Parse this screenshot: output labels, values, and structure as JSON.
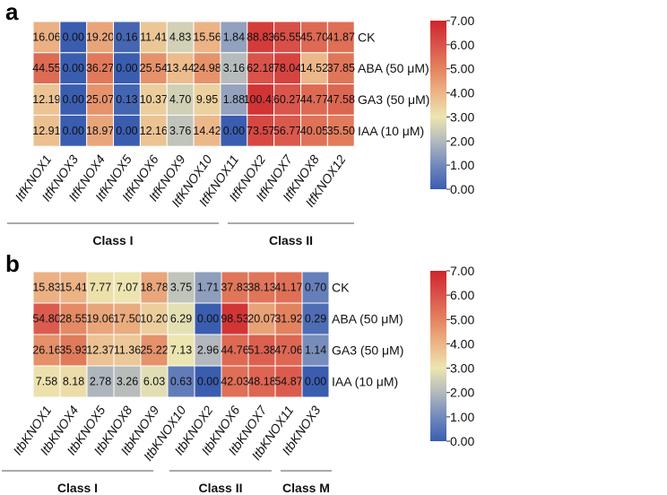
{
  "colors": {
    "stops": [
      "#3a5db0",
      "#7189bc",
      "#b3b9bd",
      "#ece6b1",
      "#ecb587",
      "#e3845f",
      "#d9524a",
      "#cf252a"
    ]
  },
  "chart_data": [
    {
      "type": "heatmap",
      "panel": "a",
      "color_transform": "log2(value+1)",
      "colorbar": {
        "range": [
          0,
          7
        ],
        "ticks": [
          "0.00",
          "1.00",
          "2.00",
          "3.00",
          "4.00",
          "5.00",
          "6.00",
          "7.00"
        ]
      },
      "rows": [
        "CK",
        "ABA (50 μM)",
        "GA3 (50 μM)",
        "IAA (10 μM)"
      ],
      "columns": [
        "ItfKNOX1",
        "ItfKNOX3",
        "ItfKNOX4",
        "ItfKNOX5",
        "ItfKNOX6",
        "ItfKNOX9",
        "ItfKNOX10",
        "ItfKNOX11",
        "ItfKNOX2",
        "ItfKNOX7",
        "ItfKNOX8",
        "ItfKNOX12"
      ],
      "values": [
        [
          "16.06",
          "0.00",
          "19.20",
          "0.16",
          "11.41",
          "4.83",
          "15.56",
          "1.84",
          "88.83",
          "65.55",
          "45.70",
          "41.87"
        ],
        [
          "44.55",
          "0.00",
          "36.27",
          "0.00",
          "25.54",
          "13.44",
          "24.98",
          "3.16",
          "62.18",
          "78.04",
          "14.52",
          "37.85"
        ],
        [
          "12.19",
          "0.00",
          "25.07",
          "0.13",
          "10.37",
          "4.70",
          "9.95",
          "1.88",
          "100.41",
          "60.27",
          "44.77",
          "47.58"
        ],
        [
          "12.91",
          "0.00",
          "18.97",
          "0.00",
          "12.16",
          "3.76",
          "14.42",
          "0.00",
          "73.57",
          "56.77",
          "40.05",
          "35.50"
        ]
      ],
      "groups": [
        {
          "label": "Class I",
          "from": 0,
          "to": 7
        },
        {
          "label": "Class II",
          "from": 8,
          "to": 11
        }
      ]
    },
    {
      "type": "heatmap",
      "panel": "b",
      "color_transform": "log2(value+1)",
      "colorbar": {
        "range": [
          0,
          7
        ],
        "ticks": [
          "0.00",
          "1.00",
          "2.00",
          "3.00",
          "4.00",
          "5.00",
          "6.00",
          "7.00"
        ]
      },
      "rows": [
        "CK",
        "ABA (50 μM)",
        "GA3 (50 μM)",
        "IAA (10 μM)"
      ],
      "columns": [
        "ItbKNOX1",
        "ItbKNOX4",
        "ItbKNOX5",
        "ItbKNOX8",
        "ItbKNOX9",
        "ItbKNOX10",
        "ItbKNOX2",
        "ItbKNOX6",
        "ItbKNOX7",
        "ItbKNOX11",
        "ItbKNOX3"
      ],
      "values": [
        [
          "15.83",
          "15.41",
          "7.77",
          "7.07",
          "18.78",
          "3.75",
          "1.71",
          "37.83",
          "38.13",
          "41.17",
          "0.70"
        ],
        [
          "54.80",
          "28.55",
          "19.06",
          "17.50",
          "10.20",
          "6.29",
          "0.00",
          "98.53",
          "20.07",
          "31.92",
          "0.29"
        ],
        [
          "26.16",
          "35.93",
          "12.37",
          "11.36",
          "25.22",
          "7.13",
          "2.96",
          "44.76",
          "51.38",
          "47.06",
          "1.14"
        ],
        [
          "7.58",
          "8.18",
          "2.78",
          "3.26",
          "6.03",
          "0.63",
          "0.00",
          "42.03",
          "48.18",
          "54.87",
          "0.00"
        ]
      ],
      "groups": [
        {
          "label": "Class I",
          "from": 0,
          "to": 5
        },
        {
          "label": "Class II",
          "from": 6,
          "to": 9
        },
        {
          "label": "Class M",
          "from": 10,
          "to": 10
        }
      ]
    }
  ]
}
